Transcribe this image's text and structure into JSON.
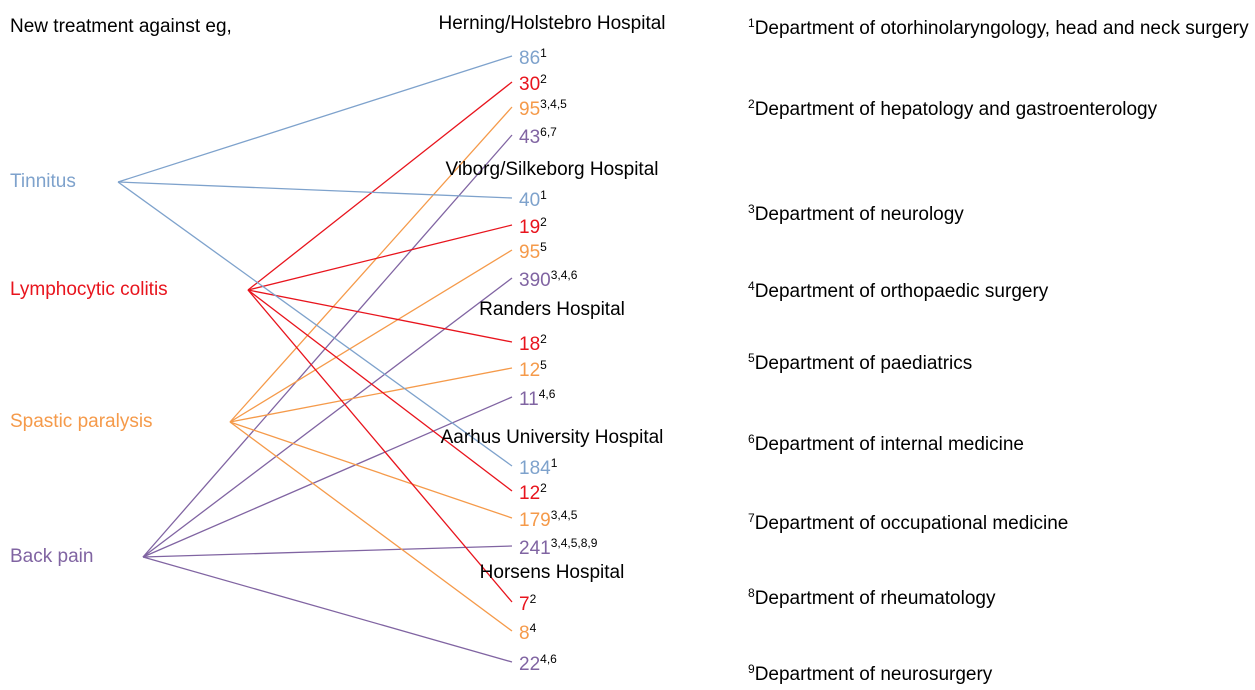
{
  "title": "New treatment against eg,",
  "conditions": [
    {
      "name": "Tinnitus",
      "color": "#7ea2cc"
    },
    {
      "name": "Lymphocytic colitis",
      "color": "#e8141d"
    },
    {
      "name": "Spastic paralysis",
      "color": "#f59a4a"
    },
    {
      "name": "Back pain",
      "color": "#8064a2"
    }
  ],
  "hospitals": [
    {
      "name": "Herning/Holstebro Hospital",
      "entries": [
        {
          "value": 86,
          "note": "1",
          "condition": 0
        },
        {
          "value": 30,
          "note": "2",
          "condition": 1
        },
        {
          "value": 95,
          "note": "3,4,5",
          "condition": 2
        },
        {
          "value": 43,
          "note": "6,7",
          "condition": 3
        }
      ]
    },
    {
      "name": "Viborg/Silkeborg Hospital",
      "entries": [
        {
          "value": 40,
          "note": "1",
          "condition": 0
        },
        {
          "value": 19,
          "note": "2",
          "condition": 1
        },
        {
          "value": 95,
          "note": "5",
          "condition": 2
        },
        {
          "value": 390,
          "note": "3,4,6",
          "condition": 3
        }
      ]
    },
    {
      "name": "Randers Hospital",
      "entries": [
        {
          "value": 18,
          "note": "2",
          "condition": 1
        },
        {
          "value": 12,
          "note": "5",
          "condition": 2
        },
        {
          "value": 11,
          "note": "4,6",
          "condition": 3
        }
      ]
    },
    {
      "name": "Aarhus University Hospital",
      "entries": [
        {
          "value": 184,
          "note": "1",
          "condition": 0
        },
        {
          "value": 12,
          "note": "2",
          "condition": 1
        },
        {
          "value": 179,
          "note": "3,4,5",
          "condition": 2
        },
        {
          "value": 241,
          "note": "3,4,5,8,9",
          "condition": 3
        }
      ]
    },
    {
      "name": "Horsens Hospital",
      "entries": [
        {
          "value": 7,
          "note": "2",
          "condition": 1
        },
        {
          "value": 8,
          "note": "4",
          "condition": 2
        },
        {
          "value": 22,
          "note": "4,6",
          "condition": 3
        }
      ]
    }
  ],
  "footnotes": [
    {
      "mark": "1",
      "text": "Department of otorhinolaryngology, head and neck surgery"
    },
    {
      "mark": "2",
      "text": "Department of hepatology and gastroenterology"
    },
    {
      "mark": "3",
      "text": "Department of neurology"
    },
    {
      "mark": "4",
      "text": "Department of orthopaedic surgery"
    },
    {
      "mark": "5",
      "text": "Department of paediatrics"
    },
    {
      "mark": "6",
      "text": "Department of internal medicine"
    },
    {
      "mark": "7",
      "text": "Department of occupational medicine"
    },
    {
      "mark": "8",
      "text": "Department of rheumatology"
    },
    {
      "mark": "9",
      "text": "Department of neurosurgery"
    }
  ]
}
